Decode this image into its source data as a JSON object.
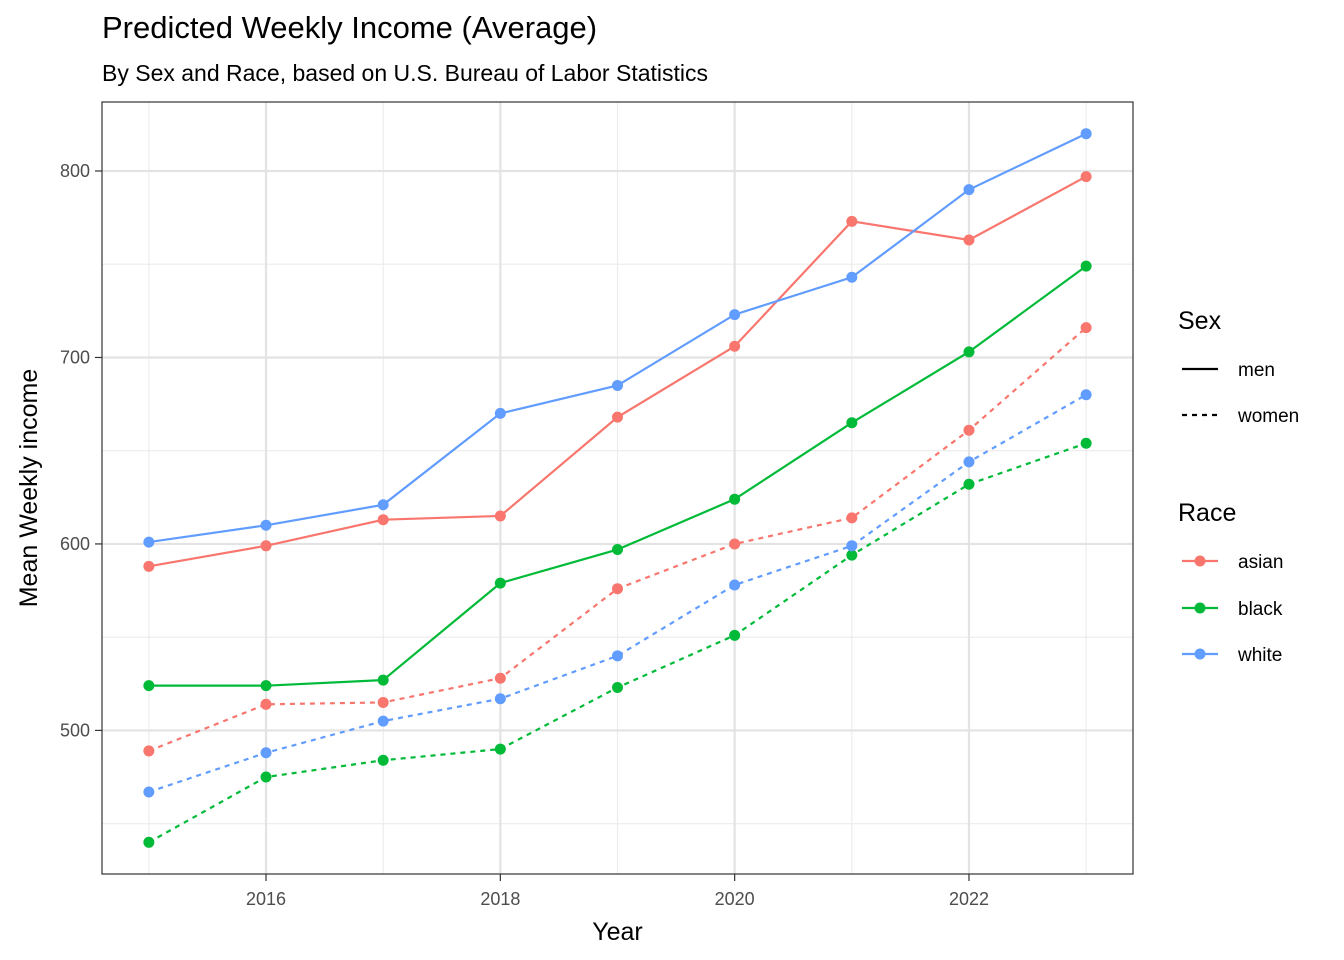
{
  "chart_data": {
    "type": "line",
    "title": "Predicted Weekly Income (Average)",
    "subtitle": "By Sex and Race, based on U.S. Bureau of Labor Statistics",
    "xlabel": "Year",
    "ylabel": "Mean Weekly income",
    "xlim": [
      2014.6,
      2023.4
    ],
    "ylim": [
      423,
      837
    ],
    "x_ticks": [
      2016,
      2018,
      2020,
      2022
    ],
    "y_ticks": [
      500,
      600,
      700,
      800
    ],
    "grid": true,
    "legend_placement": "right",
    "x": [
      2015,
      2016,
      2017,
      2018,
      2019,
      2020,
      2021,
      2022,
      2023
    ],
    "legend": {
      "sex": {
        "title": "Sex",
        "items": [
          {
            "label": "men",
            "linetype": "solid"
          },
          {
            "label": "women",
            "linetype": "dashed"
          }
        ]
      },
      "race": {
        "title": "Race",
        "items": [
          {
            "label": "asian",
            "color": "#F8766D"
          },
          {
            "label": "black",
            "color": "#00BA38"
          },
          {
            "label": "white",
            "color": "#619CFF"
          }
        ]
      }
    },
    "series": [
      {
        "race": "asian",
        "sex": "men",
        "color": "#F8766D",
        "linetype": "solid",
        "values": [
          588,
          599,
          613,
          615,
          668,
          706,
          773,
          763,
          797
        ]
      },
      {
        "race": "black",
        "sex": "men",
        "color": "#00BA38",
        "linetype": "solid",
        "values": [
          524,
          524,
          527,
          579,
          597,
          624,
          665,
          703,
          749
        ]
      },
      {
        "race": "white",
        "sex": "men",
        "color": "#619CFF",
        "linetype": "solid",
        "values": [
          601,
          610,
          621,
          670,
          685,
          723,
          743,
          790,
          820
        ]
      },
      {
        "race": "asian",
        "sex": "women",
        "color": "#F8766D",
        "linetype": "dashed",
        "values": [
          489,
          514,
          515,
          528,
          576,
          600,
          614,
          661,
          716
        ]
      },
      {
        "race": "black",
        "sex": "women",
        "color": "#00BA38",
        "linetype": "dashed",
        "values": [
          440,
          475,
          484,
          490,
          523,
          551,
          594,
          632,
          654
        ]
      },
      {
        "race": "white",
        "sex": "women",
        "color": "#619CFF",
        "linetype": "dashed",
        "values": [
          467,
          488,
          505,
          517,
          540,
          578,
          599,
          644,
          680
        ]
      }
    ]
  }
}
